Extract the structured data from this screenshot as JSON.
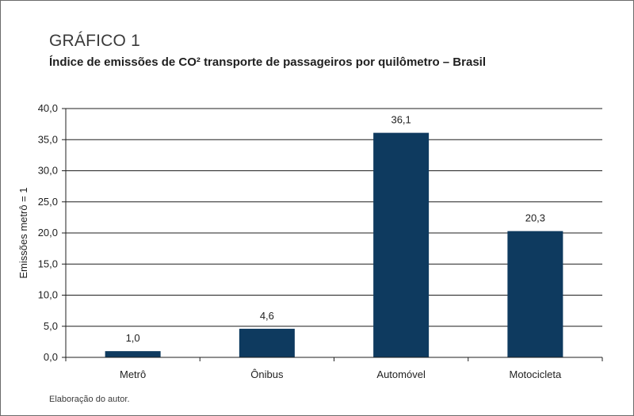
{
  "header": {
    "kicker": "GRÁFICO 1",
    "title": "Índice de emissões de CO² transporte de passageiros por quilômetro – Brasil"
  },
  "footer": {
    "source": "Elaboração do autor."
  },
  "colors": {
    "bar": "#0e3a5f",
    "grid": "#1f1f1f"
  },
  "chart_data": {
    "type": "bar",
    "categories": [
      "Metrô",
      "Ônibus",
      "Automóvel",
      "Motocicleta"
    ],
    "values": [
      1.0,
      4.6,
      36.1,
      20.3
    ],
    "value_labels": [
      "1,0",
      "4,6",
      "36,1",
      "20,3"
    ],
    "title": "Índice de emissões de CO² transporte de passageiros por quilômetro – Brasil",
    "xlabel": "",
    "ylabel": "Emissões metrô = 1",
    "ylim": [
      0,
      40
    ],
    "yticks": [
      0,
      5,
      10,
      15,
      20,
      25,
      30,
      35,
      40
    ],
    "ytick_labels": [
      "0,0",
      "5,0",
      "10,0",
      "15,0",
      "20,0",
      "25,0",
      "30,0",
      "35,0",
      "40,0"
    ],
    "grid": true,
    "legend": "none"
  }
}
